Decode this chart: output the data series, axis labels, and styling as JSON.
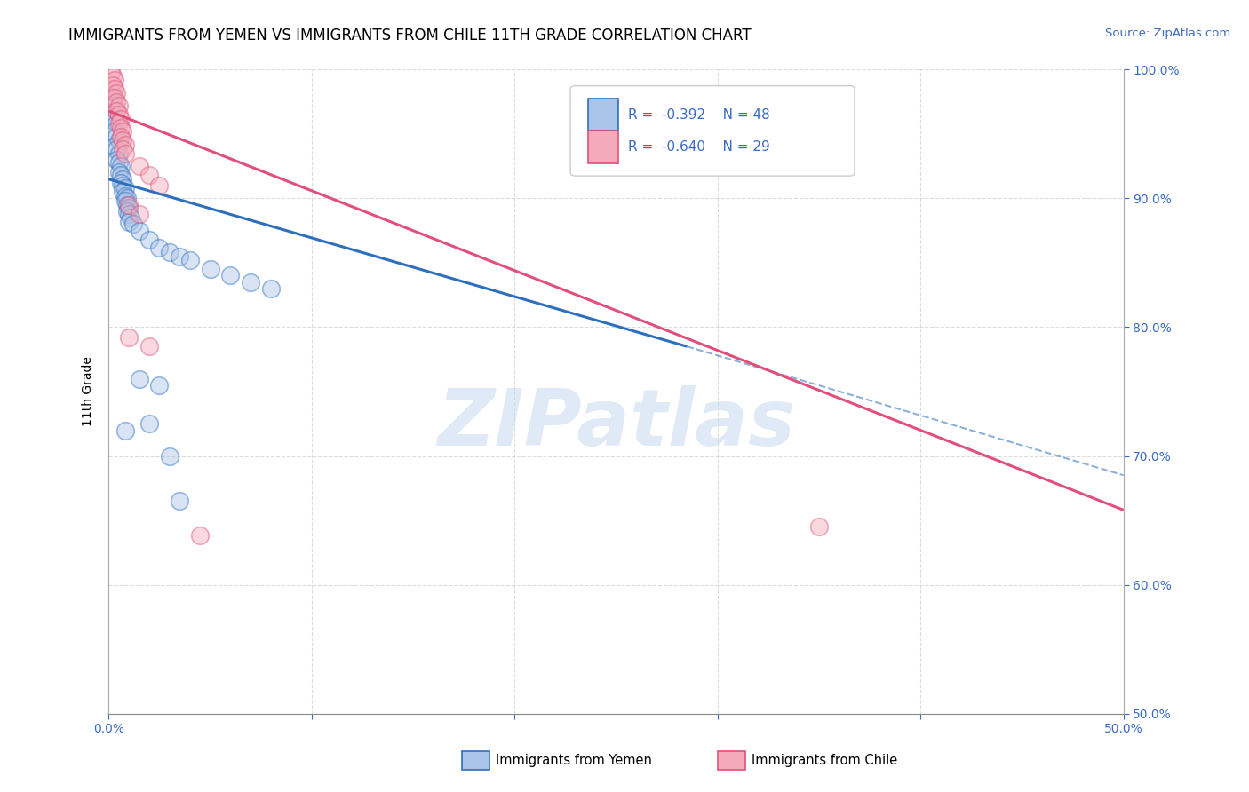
{
  "title": "IMMIGRANTS FROM YEMEN VS IMMIGRANTS FROM CHILE 11TH GRADE CORRELATION CHART",
  "source": "Source: ZipAtlas.com",
  "ylabel": "11th Grade",
  "xlim": [
    0.0,
    0.5
  ],
  "ylim": [
    0.5,
    1.0
  ],
  "xticks": [
    0.0,
    0.1,
    0.2,
    0.3,
    0.4,
    0.5
  ],
  "yticks": [
    0.5,
    0.6,
    0.7,
    0.8,
    0.9,
    1.0
  ],
  "xtick_labels_show": [
    "0.0%",
    "",
    "",
    "",
    "",
    "50.0%"
  ],
  "ytick_labels_show": [
    "50.0%",
    "60.0%",
    "70.0%",
    "80.0%",
    "90.0%",
    "100.0%"
  ],
  "legend_label1": "R =  -0.392    N = 48",
  "legend_label2": "R =  -0.640    N = 29",
  "legend_color1": "#aac4e8",
  "legend_color2": "#f4aab9",
  "watermark": "ZIPatlas",
  "yemen_scatter": [
    [
      0.001,
      0.983
    ],
    [
      0.002,
      0.978
    ],
    [
      0.003,
      0.972
    ],
    [
      0.002,
      0.965
    ],
    [
      0.003,
      0.96
    ],
    [
      0.004,
      0.958
    ],
    [
      0.003,
      0.952
    ],
    [
      0.004,
      0.948
    ],
    [
      0.005,
      0.945
    ],
    [
      0.003,
      0.94
    ],
    [
      0.004,
      0.938
    ],
    [
      0.005,
      0.935
    ],
    [
      0.004,
      0.93
    ],
    [
      0.005,
      0.928
    ],
    [
      0.006,
      0.925
    ],
    [
      0.005,
      0.92
    ],
    [
      0.006,
      0.918
    ],
    [
      0.007,
      0.915
    ],
    [
      0.006,
      0.912
    ],
    [
      0.007,
      0.91
    ],
    [
      0.008,
      0.908
    ],
    [
      0.007,
      0.905
    ],
    [
      0.008,
      0.902
    ],
    [
      0.009,
      0.9
    ],
    [
      0.008,
      0.898
    ],
    [
      0.009,
      0.895
    ],
    [
      0.01,
      0.893
    ],
    [
      0.009,
      0.89
    ],
    [
      0.01,
      0.888
    ],
    [
      0.011,
      0.885
    ],
    [
      0.01,
      0.882
    ],
    [
      0.012,
      0.88
    ],
    [
      0.015,
      0.875
    ],
    [
      0.02,
      0.868
    ],
    [
      0.025,
      0.862
    ],
    [
      0.03,
      0.858
    ],
    [
      0.035,
      0.855
    ],
    [
      0.04,
      0.852
    ],
    [
      0.05,
      0.845
    ],
    [
      0.06,
      0.84
    ],
    [
      0.07,
      0.835
    ],
    [
      0.08,
      0.83
    ],
    [
      0.015,
      0.76
    ],
    [
      0.025,
      0.755
    ],
    [
      0.02,
      0.725
    ],
    [
      0.008,
      0.72
    ],
    [
      0.03,
      0.7
    ],
    [
      0.035,
      0.665
    ]
  ],
  "chile_scatter": [
    [
      0.001,
      0.998
    ],
    [
      0.002,
      0.995
    ],
    [
      0.003,
      0.992
    ],
    [
      0.002,
      0.988
    ],
    [
      0.003,
      0.985
    ],
    [
      0.004,
      0.982
    ],
    [
      0.003,
      0.978
    ],
    [
      0.004,
      0.975
    ],
    [
      0.005,
      0.972
    ],
    [
      0.004,
      0.968
    ],
    [
      0.005,
      0.965
    ],
    [
      0.006,
      0.962
    ],
    [
      0.005,
      0.958
    ],
    [
      0.006,
      0.955
    ],
    [
      0.007,
      0.952
    ],
    [
      0.006,
      0.948
    ],
    [
      0.007,
      0.945
    ],
    [
      0.008,
      0.942
    ],
    [
      0.007,
      0.938
    ],
    [
      0.008,
      0.935
    ],
    [
      0.015,
      0.925
    ],
    [
      0.02,
      0.918
    ],
    [
      0.025,
      0.91
    ],
    [
      0.01,
      0.895
    ],
    [
      0.015,
      0.888
    ],
    [
      0.01,
      0.792
    ],
    [
      0.02,
      0.785
    ],
    [
      0.35,
      0.645
    ],
    [
      0.045,
      0.638
    ]
  ],
  "yemen_line_solid": [
    [
      0.0,
      0.915
    ],
    [
      0.285,
      0.785
    ]
  ],
  "yemen_line_dashed": [
    [
      0.285,
      0.785
    ],
    [
      0.5,
      0.685
    ]
  ],
  "chile_line_solid": [
    [
      0.0,
      0.968
    ],
    [
      0.5,
      0.658
    ]
  ],
  "dot_size": 200,
  "scatter_alpha": 0.45,
  "line_color_yemen": "#2e6fbd",
  "line_color_chile": "#e0507a",
  "background_color": "#ffffff",
  "grid_color": "#cccccc",
  "title_fontsize": 12,
  "axis_label_fontsize": 10,
  "tick_fontsize": 10
}
